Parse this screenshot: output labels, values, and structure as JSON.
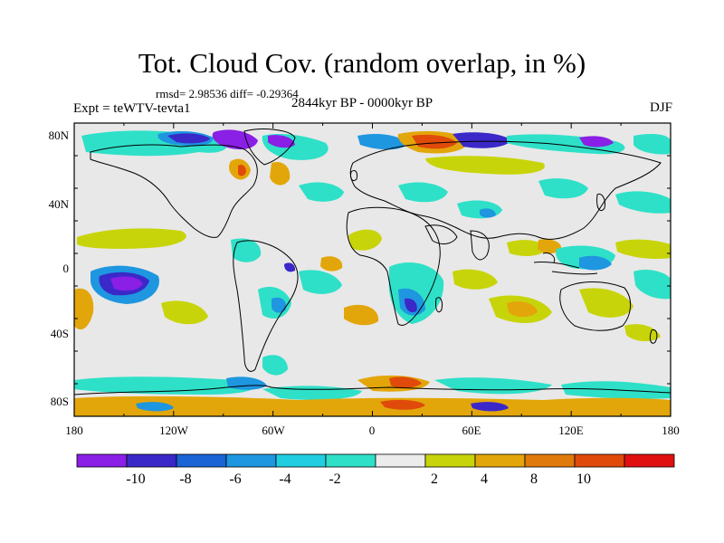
{
  "title": "Tot. Cloud Cov. (random overlap, in %)",
  "stats": "rmsd= 2.98536 diff= -0.29364",
  "experiment": "Expt = teWTV-tevta1",
  "period": "2844kyr BP - 0000kyr BP",
  "season": "DJF",
  "map": {
    "lat_labels": [
      "80N",
      "40N",
      "0",
      "40S",
      "80S"
    ],
    "lon_labels": [
      "180",
      "120W",
      "60W",
      "0",
      "60E",
      "120E",
      "180"
    ],
    "land_color": "#e8e8e8",
    "coast_color": "#000000"
  },
  "colorbar": {
    "labels": [
      "-10",
      "-8",
      "-6",
      "-4",
      "-2",
      "2",
      "4",
      "8",
      "10"
    ],
    "colors": [
      "#8a1fe6",
      "#3b28c8",
      "#1a64d6",
      "#1e96e0",
      "#21cde0",
      "#2ee0c8",
      "#ececec",
      "#c8d40a",
      "#e3a60a",
      "#e07a0a",
      "#e04a0a",
      "#e01010"
    ]
  }
}
